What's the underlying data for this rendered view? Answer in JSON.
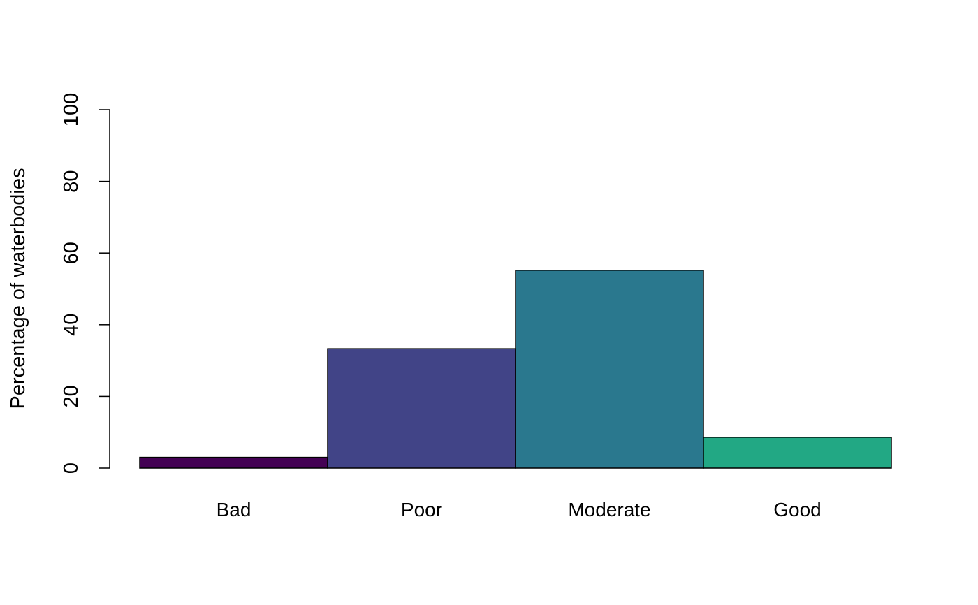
{
  "chart_data": {
    "type": "bar",
    "title": "",
    "xlabel": "",
    "ylabel": "Percentage of waterbodies",
    "categories": [
      "Bad",
      "Poor",
      "Moderate",
      "Good"
    ],
    "values": [
      3,
      33.3,
      55.2,
      8.6
    ],
    "colors": [
      "#440154",
      "#414487",
      "#2A788E",
      "#22A884"
    ],
    "ylim": [
      0,
      100
    ],
    "yticks": [
      0,
      20,
      40,
      60,
      80,
      100
    ],
    "grid": false,
    "legend": "none"
  }
}
